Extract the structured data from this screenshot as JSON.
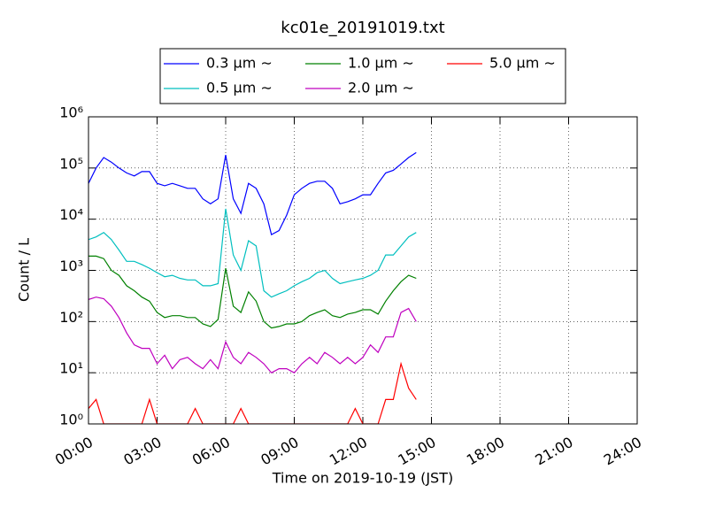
{
  "chart_data": {
    "type": "line",
    "title": "kc01e_20191019.txt",
    "x_label": "Time on 2019-10-19 (JST)",
    "y_label": "Count / L",
    "log_y": true,
    "grid": true,
    "legend_position": "top",
    "xlim": [
      0,
      1440
    ],
    "xticks": [
      {
        "value": 0,
        "label": "00:00"
      },
      {
        "value": 180,
        "label": "03:00"
      },
      {
        "value": 360,
        "label": "06:00"
      },
      {
        "value": 540,
        "label": "09:00"
      },
      {
        "value": 720,
        "label": "12:00"
      },
      {
        "value": 900,
        "label": "15:00"
      },
      {
        "value": 1080,
        "label": "18:00"
      },
      {
        "value": 1260,
        "label": "21:00"
      },
      {
        "value": 1440,
        "label": "24:00"
      }
    ],
    "ylim": [
      1,
      1000000
    ],
    "yticks": [
      {
        "value": 1,
        "label": "10⁰"
      },
      {
        "value": 10,
        "label": "10¹"
      },
      {
        "value": 100,
        "label": "10²"
      },
      {
        "value": 1000,
        "label": "10³"
      },
      {
        "value": 10000,
        "label": "10⁴"
      },
      {
        "value": 100000,
        "label": "10⁵"
      },
      {
        "value": 1000000,
        "label": "10⁶"
      }
    ],
    "x": [
      0,
      20,
      40,
      60,
      80,
      100,
      120,
      140,
      160,
      180,
      200,
      220,
      240,
      260,
      280,
      300,
      320,
      340,
      360,
      380,
      400,
      420,
      440,
      460,
      480,
      500,
      520,
      540,
      560,
      580,
      600,
      620,
      640,
      660,
      680,
      700,
      720,
      740,
      760,
      780,
      800,
      820,
      840,
      860
    ],
    "series": [
      {
        "name": "0.3 μm ∼",
        "color": "#0000ff",
        "values": [
          50000,
          100000,
          160000,
          130000,
          100000,
          80000,
          70000,
          85000,
          85000,
          50000,
          45000,
          50000,
          45000,
          40000,
          40000,
          25000,
          20000,
          25000,
          180000,
          25000,
          13000,
          50000,
          40000,
          20000,
          5000,
          6000,
          12000,
          30000,
          40000,
          50000,
          55000,
          55000,
          40000,
          20000,
          22000,
          25000,
          30000,
          30000,
          50000,
          80000,
          90000,
          120000,
          160000,
          200000
        ]
      },
      {
        "name": "0.5 μm ∼",
        "color": "#00bfbf",
        "values": [
          4000,
          4500,
          5500,
          4000,
          2500,
          1500,
          1500,
          1300,
          1100,
          900,
          750,
          800,
          700,
          650,
          650,
          500,
          500,
          550,
          16000,
          2000,
          1000,
          3800,
          3000,
          400,
          300,
          350,
          400,
          500,
          600,
          700,
          900,
          1000,
          700,
          550,
          600,
          650,
          700,
          800,
          1000,
          2000,
          2000,
          3000,
          4500,
          5500
        ]
      },
      {
        "name": "1.0 μm ∼",
        "color": "#008000",
        "values": [
          1900,
          1900,
          1700,
          1000,
          800,
          500,
          400,
          300,
          250,
          150,
          120,
          130,
          130,
          120,
          120,
          90,
          80,
          110,
          1100,
          200,
          150,
          380,
          250,
          100,
          75,
          80,
          90,
          90,
          100,
          130,
          150,
          170,
          130,
          120,
          140,
          150,
          170,
          170,
          140,
          250,
          400,
          600,
          800,
          700
        ]
      },
      {
        "name": "2.0 μm ∼",
        "color": "#bf00bf",
        "values": [
          270,
          300,
          280,
          200,
          120,
          60,
          35,
          30,
          30,
          15,
          22,
          12,
          18,
          20,
          15,
          12,
          18,
          12,
          40,
          20,
          15,
          25,
          20,
          15,
          10,
          12,
          12,
          10,
          15,
          20,
          15,
          25,
          20,
          15,
          20,
          15,
          20,
          35,
          25,
          50,
          50,
          150,
          180,
          100
        ]
      },
      {
        "name": "5.0 μm ∼",
        "color": "#ff0000",
        "values": [
          2,
          3,
          1,
          1,
          1,
          1,
          1,
          1,
          3,
          1,
          1,
          1,
          1,
          1,
          2,
          1,
          1,
          1,
          1,
          1,
          2,
          1,
          1,
          1,
          1,
          1,
          1,
          1,
          1,
          1,
          1,
          1,
          1,
          1,
          1,
          2,
          1,
          1,
          1,
          3,
          3,
          15,
          5,
          3
        ]
      }
    ]
  }
}
